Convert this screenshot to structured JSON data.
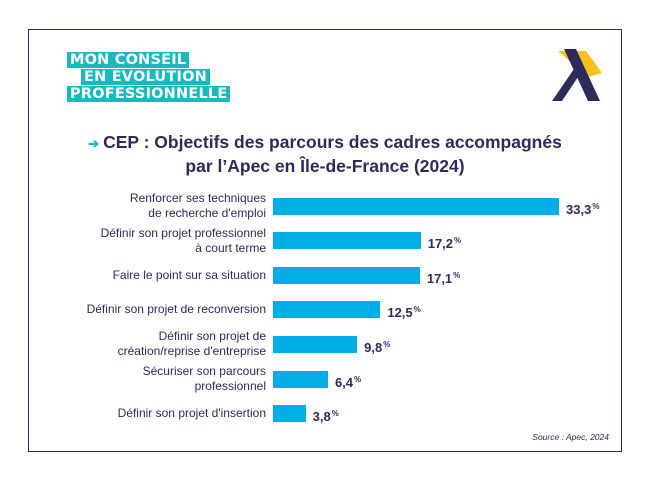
{
  "logo": {
    "line1": "MON CONSEIL",
    "line2": "EN ÉVOLUTION",
    "line3": "PROFESSIONNELLE",
    "color": "#1ab8c0"
  },
  "brand_icon": "apec-logo-icon",
  "title": {
    "arrow": "➔",
    "line1": "CEP : Objectifs des parcours des cadres accompagnés",
    "line2": "par l’Apec en Île-de-France (2024)"
  },
  "chart_data": {
    "type": "bar",
    "orientation": "horizontal",
    "categories": [
      [
        "Renforcer ses techniques",
        "de recherche d'emploi"
      ],
      [
        "Définir son projet professionnel",
        "à court terme"
      ],
      [
        "Faire le point sur sa situation"
      ],
      [
        "Définir son projet de reconversion"
      ],
      [
        "Définir son projet de",
        "création/reprise d'entreprise"
      ],
      [
        "Sécuriser son parcours",
        "professionnel"
      ],
      [
        "Définir son projet d'insertion"
      ]
    ],
    "values": [
      33.3,
      17.2,
      17.1,
      12.5,
      9.8,
      6.4,
      3.8
    ],
    "value_labels": [
      "33,3",
      "17,2",
      "17,1",
      "12,5",
      "9,8",
      "6,4",
      "3,8"
    ],
    "unit": "%",
    "xlim": [
      0,
      33.3
    ],
    "bar_color": "#00aee8",
    "text_color": "#2d2a5c"
  },
  "source": "Source : Apec, 2024"
}
